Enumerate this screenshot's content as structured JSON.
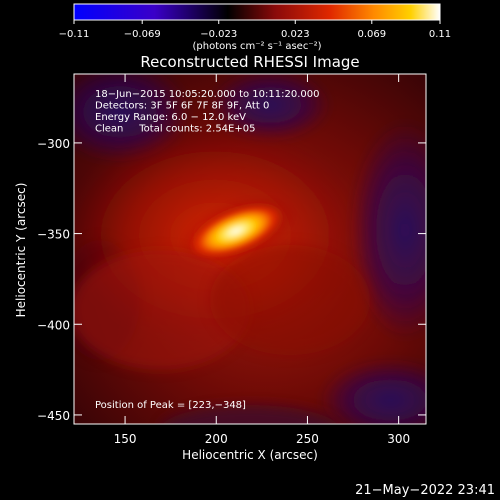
{
  "chart_data": {
    "type": "heatmap",
    "title": "Reconstructed RHESSI Image",
    "xlabel": "Heliocentric X (arcsec)",
    "ylabel": "Heliocentric Y (arcsec)",
    "xlim": [
      122,
      315
    ],
    "ylim": [
      -455,
      -262
    ],
    "x_ticks": [
      150,
      200,
      250,
      300
    ],
    "y_ticks": [
      -450,
      -400,
      -350,
      -300
    ],
    "x_tick_labels": [
      "150",
      "200",
      "250",
      "300"
    ],
    "y_tick_labels": [
      "−450",
      "−400",
      "−350",
      "−300"
    ],
    "colorbar": {
      "min": -0.11,
      "max": 0.11,
      "ticks": [
        -0.11,
        -0.069,
        -0.023,
        0.023,
        0.069,
        0.11
      ],
      "tick_labels": [
        "−0.11",
        "−0.069",
        "−0.023",
        "0.023",
        "0.069",
        "0.11"
      ],
      "unit_label": "(photons cm⁻² s⁻¹ asec⁻²)",
      "colormap": [
        "#0000ff",
        "#3a00c8",
        "#000000",
        "#8a0a0a",
        "#e02800",
        "#ff8a00",
        "#ffd000",
        "#ffffff"
      ]
    },
    "annotations": [
      "18−Jun−2015 10:05:20.000 to 10:11:20.000",
      "Detectors: 3F 5F 6F 7F 8F 9F, Att 0",
      "Energy Range: 6.0 − 12.0 keV",
      "Clean     Total counts: 2.54E+05"
    ],
    "peak_label": "Position of Peak = [223,−348]",
    "peak_position": [
      223,
      -348
    ],
    "grid": false,
    "legend": "none"
  },
  "footer": {
    "timestamp": "21−May−2022 23:41"
  }
}
